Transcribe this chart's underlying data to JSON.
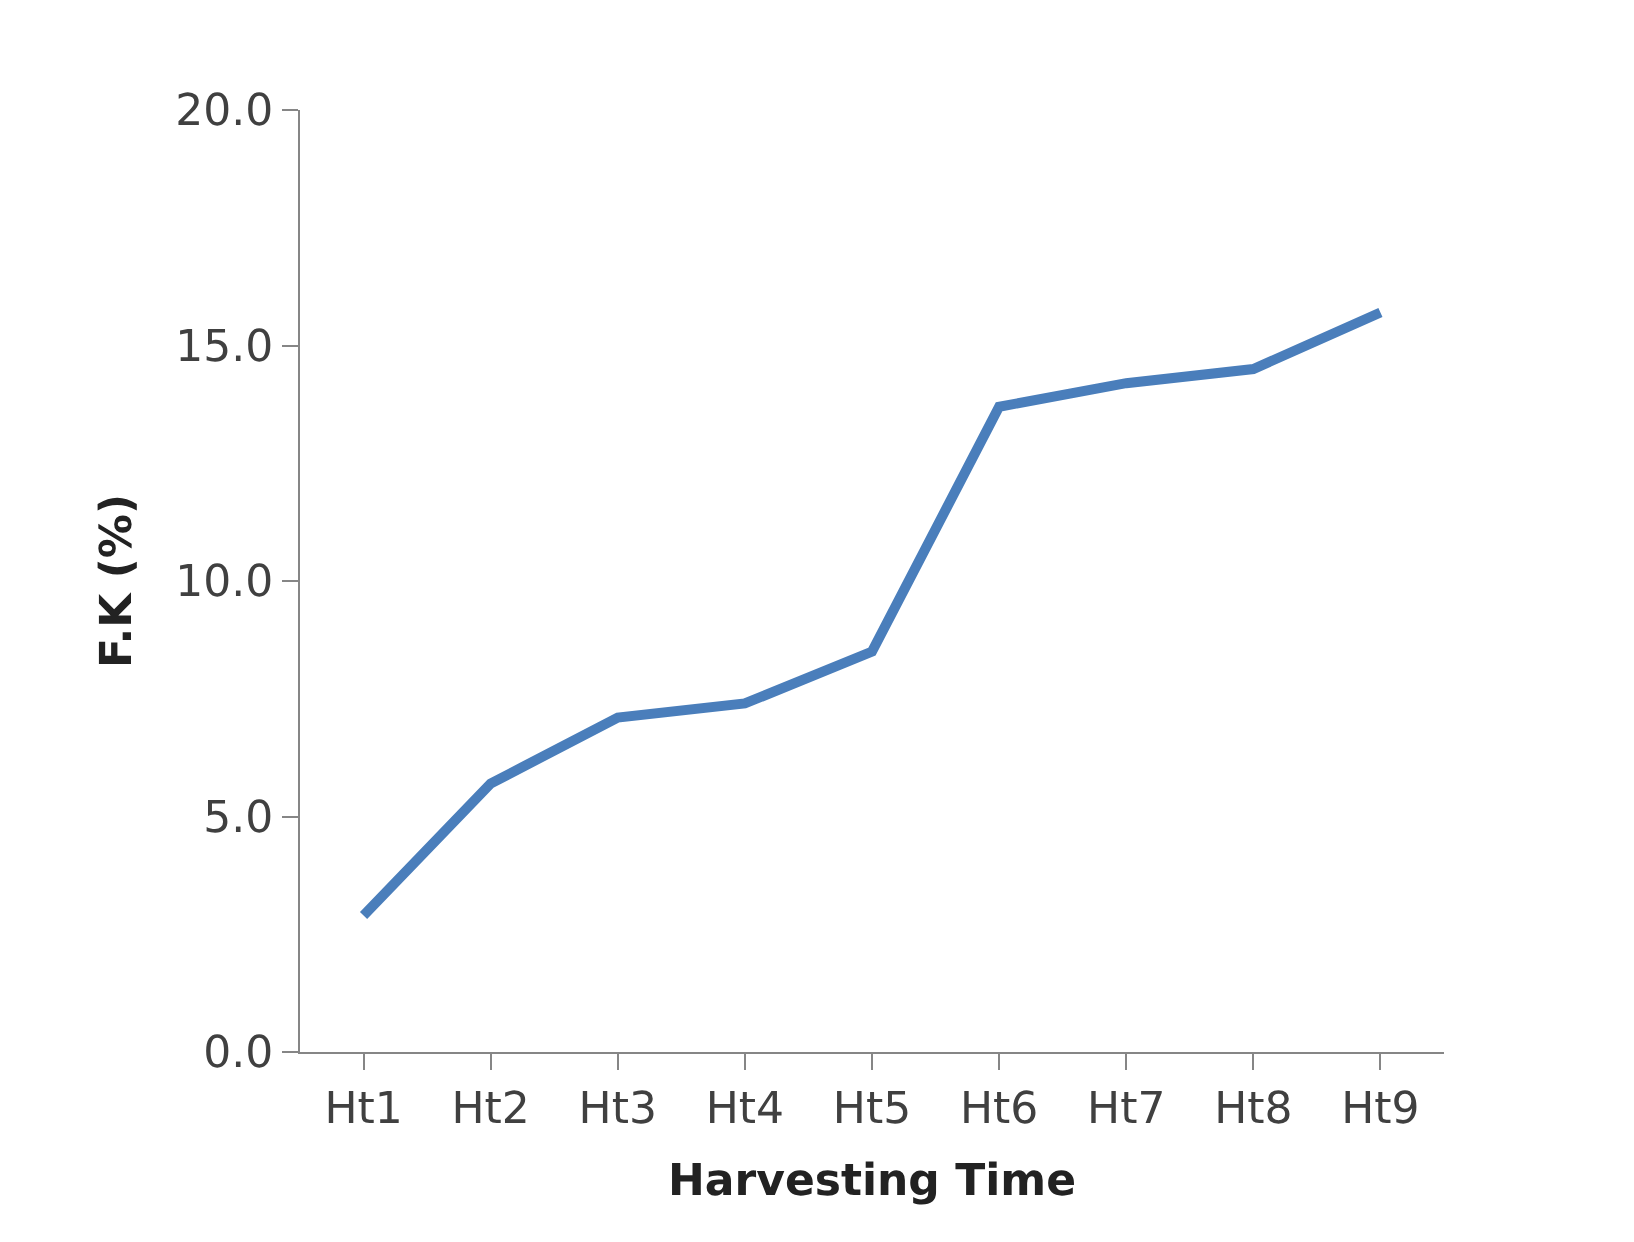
{
  "chart_data": {
    "type": "line",
    "xlabel": "Harvesting Time",
    "ylabel": "F.K (%)",
    "categories": [
      "Ht1",
      "Ht2",
      "Ht3",
      "Ht4",
      "Ht5",
      "Ht6",
      "Ht7",
      "Ht8",
      "Ht9"
    ],
    "series": [
      {
        "color": "#4a7ebb",
        "values": [
          2.9,
          5.7,
          7.1,
          7.4,
          8.5,
          13.7,
          14.2,
          14.5,
          15.7
        ]
      }
    ],
    "ylim": [
      0,
      20
    ],
    "yticks": [
      {
        "value": 0,
        "label": "0.0"
      },
      {
        "value": 5,
        "label": "5.0"
      },
      {
        "value": 10,
        "label": "10.0"
      },
      {
        "value": 15,
        "label": "15.0"
      },
      {
        "value": 20,
        "label": "20.0"
      }
    ],
    "legend": false,
    "marker": "none",
    "line_style": "solid"
  }
}
